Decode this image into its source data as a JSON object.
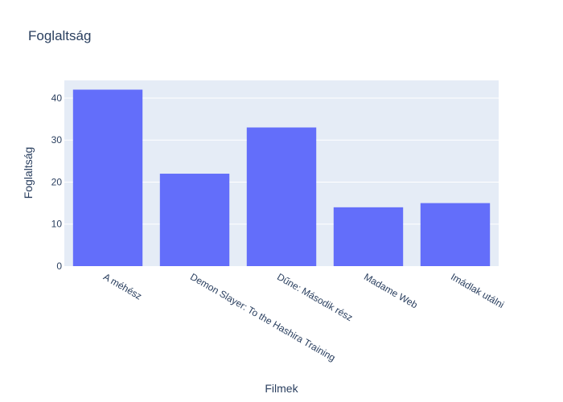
{
  "chart_data": {
    "type": "bar",
    "title": "Foglaltság",
    "xlabel": "Filmek",
    "ylabel": "Foglaltság",
    "categories": [
      "A méhész",
      "Demon Slayer: To the Hashira Training",
      "Dűne: Második rész",
      "Madame Web",
      "Imádlak utálni"
    ],
    "values": [
      42,
      22,
      33,
      14,
      15
    ],
    "ylim": [
      0,
      44.2
    ],
    "yticks": [
      0,
      10,
      20,
      30,
      40
    ],
    "grid": true,
    "legend": "none",
    "colors": {
      "bar": "#636efa",
      "plot_bg": "#e5ecf6",
      "grid": "#ffffff",
      "text": "#2a3f5f"
    }
  }
}
